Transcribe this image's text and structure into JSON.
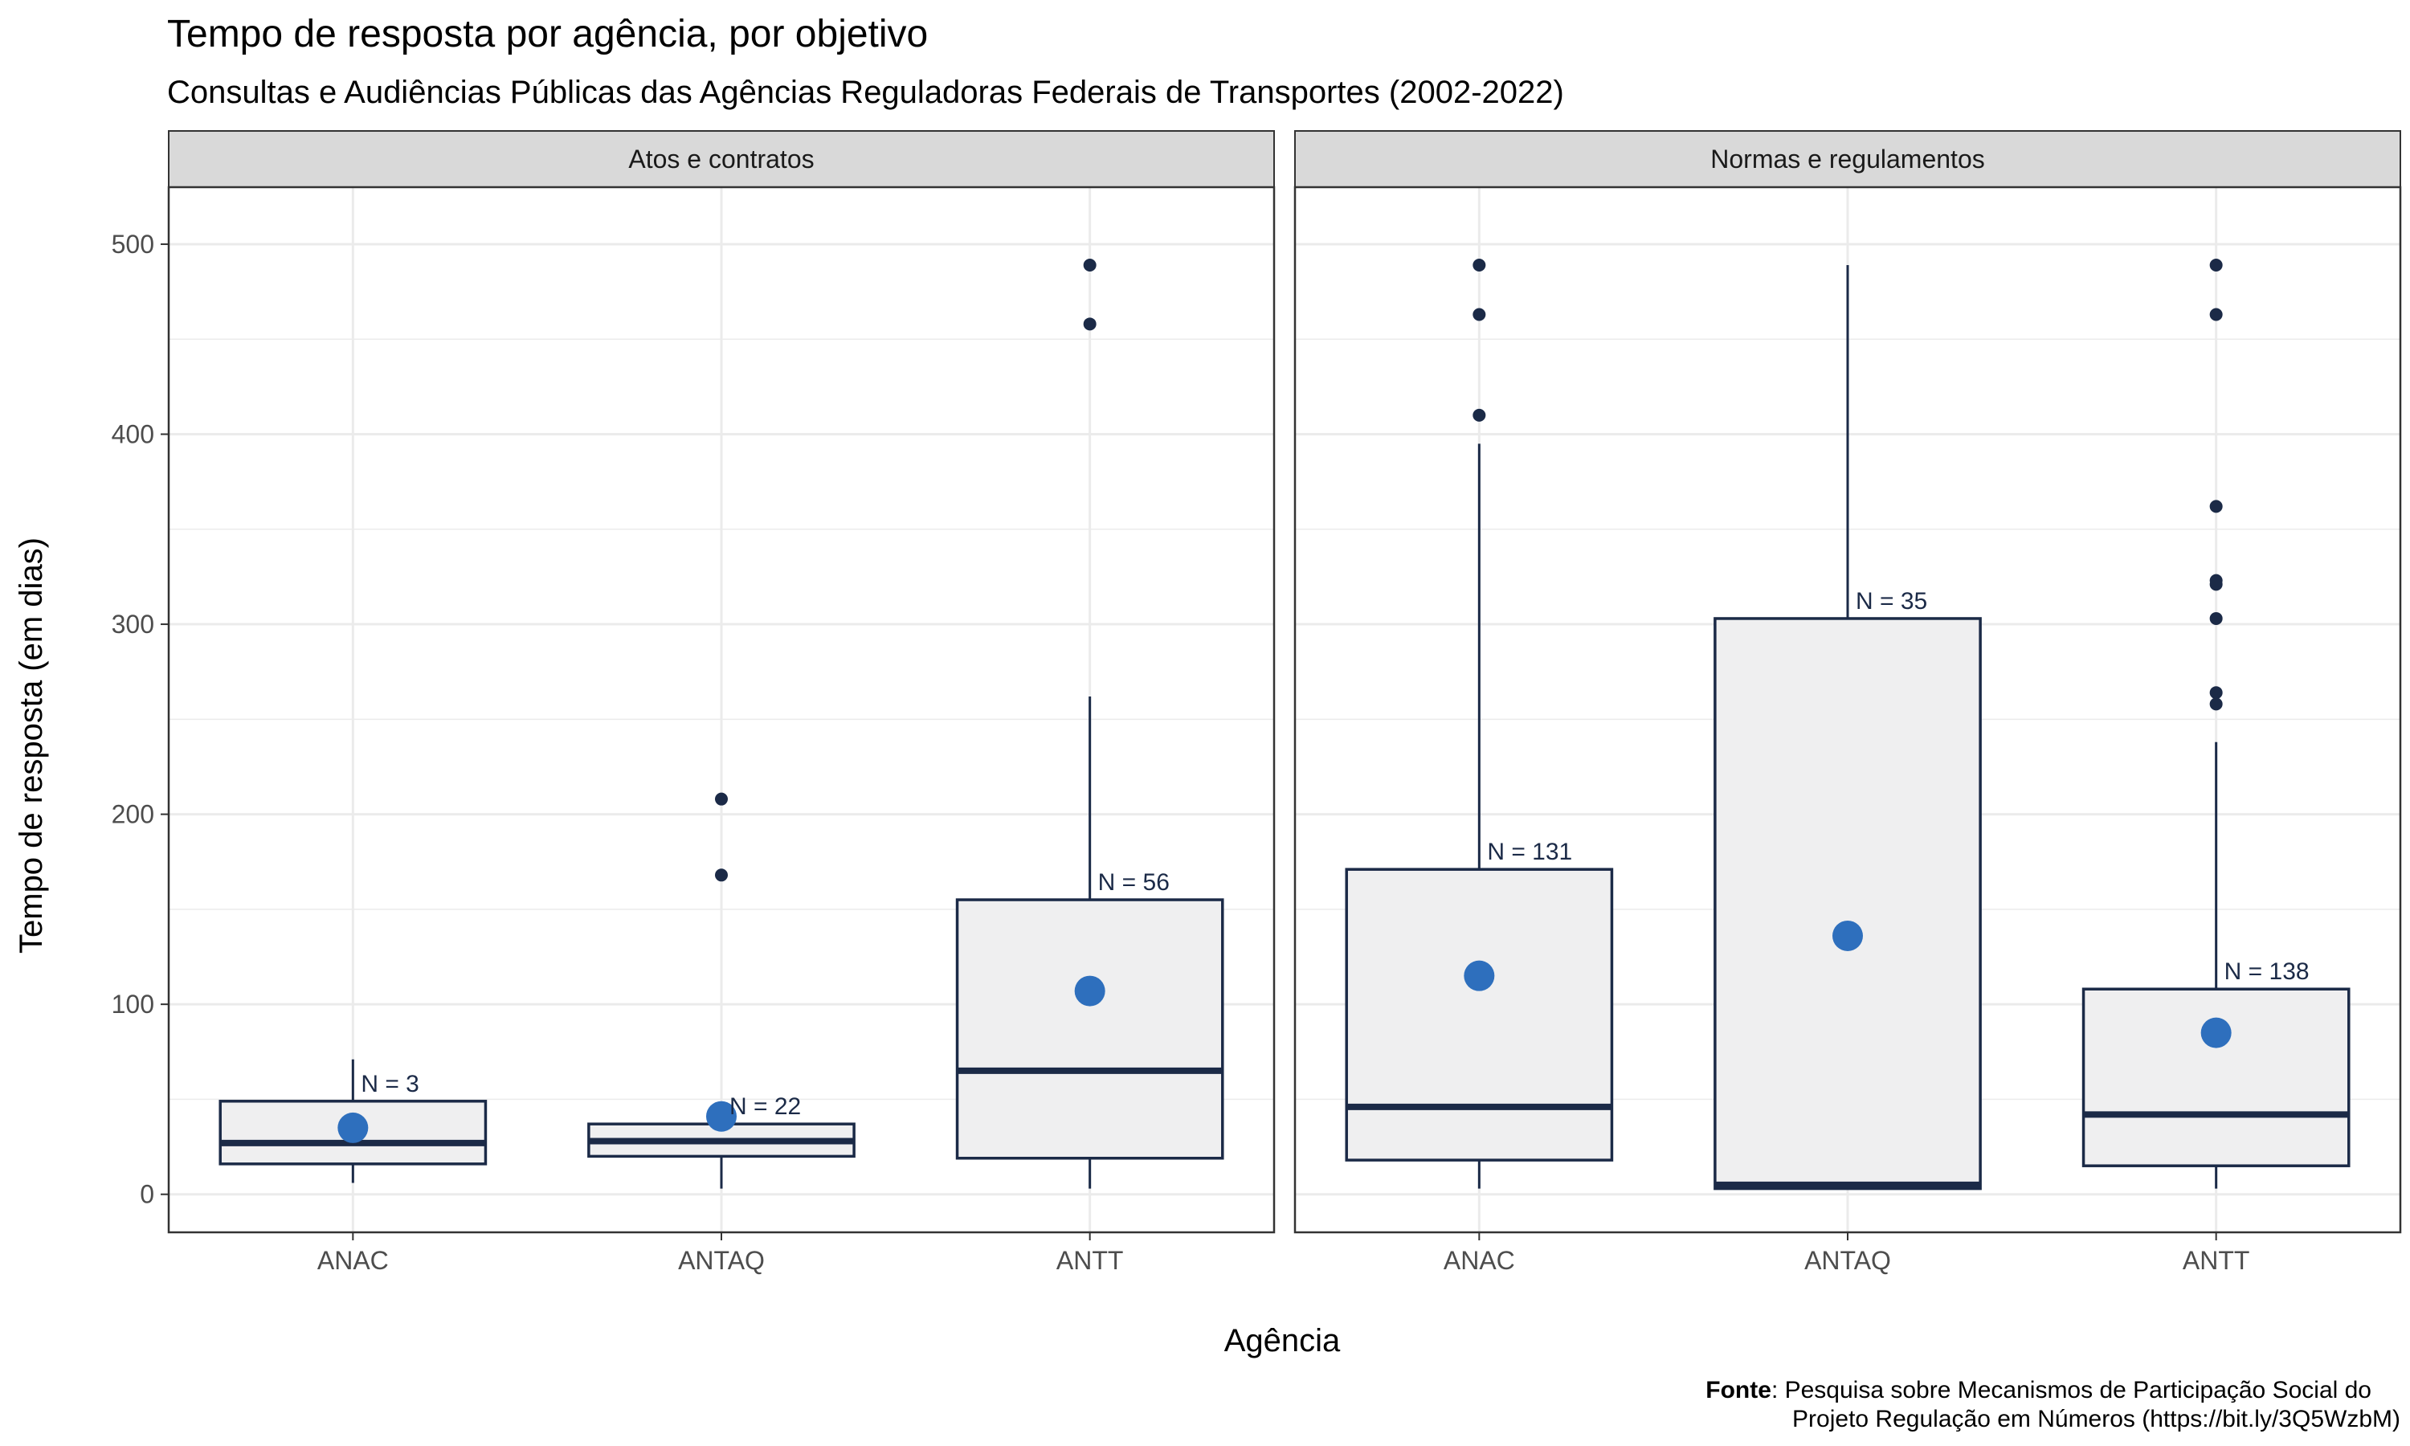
{
  "chart_data": {
    "type": "box",
    "title": "Tempo de resposta por agência, por objetivo",
    "subtitle": "Consultas e Audiências Públicas das Agências Reguladoras Federais de Transportes (2002-2022)",
    "xlabel": "Agência",
    "ylabel": "Tempo de resposta (em dias)",
    "ylim": [
      -20,
      530
    ],
    "yticks": [
      0,
      100,
      200,
      300,
      400,
      500
    ],
    "categories": [
      "ANAC",
      "ANTAQ",
      "ANTT"
    ],
    "grid": true,
    "caption": {
      "bold": "Fonte",
      "line1": ": Pesquisa sobre Mecanismos de Participação Social do",
      "line2": "Projeto Regulação em Números (https://bit.ly/3Q5WzbM)"
    },
    "colors": {
      "box_fill": "#efeff0",
      "box_line": "#1b2a47",
      "mean_point": "#2e6fbd",
      "outlier": "#1b2a47",
      "strip_fill": "#d9d9d9",
      "grid": "#ebebeb"
    },
    "panels": [
      {
        "name": "Atos e contratos",
        "boxes": [
          {
            "agency": "ANAC",
            "min": 6,
            "q1": 16,
            "median": 27,
            "q3": 49,
            "max": 71,
            "mean": 35,
            "outliers": [],
            "n_label": "N = 3"
          },
          {
            "agency": "ANTAQ",
            "min": 3,
            "q1": 20,
            "median": 28,
            "q3": 37,
            "max": 37,
            "mean": 41,
            "outliers": [
              168,
              208
            ],
            "n_label": "N = 22"
          },
          {
            "agency": "ANTT",
            "min": 3,
            "q1": 19,
            "median": 65,
            "q3": 155,
            "max": 262,
            "mean": 107,
            "outliers": [
              458,
              489
            ],
            "n_label": "N = 56"
          }
        ]
      },
      {
        "name": "Normas e regulamentos",
        "boxes": [
          {
            "agency": "ANAC",
            "min": 3,
            "q1": 18,
            "median": 46,
            "q3": 171,
            "max": 395,
            "mean": 115,
            "outliers": [
              410,
              463,
              489
            ],
            "n_label": "N = 131"
          },
          {
            "agency": "ANTAQ",
            "min": 3,
            "q1": 3,
            "median": 5,
            "q3": 303,
            "max": 489,
            "mean": 136,
            "outliers": [],
            "n_label": "N = 35"
          },
          {
            "agency": "ANTT",
            "min": 3,
            "q1": 15,
            "median": 42,
            "q3": 108,
            "max": 238,
            "mean": 85,
            "outliers": [
              258,
              264,
              303,
              321,
              323,
              362,
              463,
              489
            ],
            "n_label": "N = 138"
          }
        ]
      }
    ]
  }
}
